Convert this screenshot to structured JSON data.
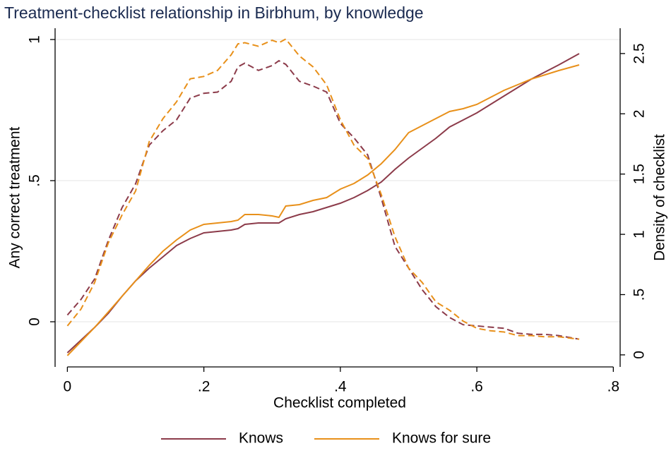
{
  "chart_data": {
    "type": "line",
    "title": "Treatment-checklist relationship in Birbhum, by knowledge",
    "x_label": "Checklist completed",
    "y_label": "Any correct treatment",
    "y2_label": "Density of checklist",
    "x": [
      0,
      0.02,
      0.04,
      0.06,
      0.08,
      0.1,
      0.12,
      0.14,
      0.16,
      0.18,
      0.2,
      0.22,
      0.24,
      0.25,
      0.26,
      0.28,
      0.3,
      0.31,
      0.32,
      0.34,
      0.36,
      0.38,
      0.4,
      0.42,
      0.44,
      0.46,
      0.48,
      0.5,
      0.52,
      0.54,
      0.56,
      0.58,
      0.6,
      0.62,
      0.64,
      0.66,
      0.68,
      0.7,
      0.72,
      0.75
    ],
    "series": [
      {
        "name": "Knows",
        "color": "#8c3b4a",
        "values": [
          -0.11,
          -0.065,
          -0.02,
          0.03,
          0.09,
          0.145,
          0.19,
          0.23,
          0.27,
          0.295,
          0.315,
          0.32,
          0.325,
          0.33,
          0.345,
          0.35,
          0.35,
          0.35,
          0.365,
          0.38,
          0.39,
          0.405,
          0.42,
          0.44,
          0.465,
          0.495,
          0.54,
          0.58,
          0.615,
          0.65,
          0.69,
          0.715,
          0.74,
          0.77,
          0.8,
          0.83,
          0.86,
          0.885,
          0.91,
          0.95
        ],
        "density": [
          0.33,
          0.46,
          0.63,
          0.95,
          1.22,
          1.42,
          1.74,
          1.86,
          1.95,
          2.13,
          2.17,
          2.18,
          2.27,
          2.39,
          2.42,
          2.36,
          2.4,
          2.44,
          2.41,
          2.27,
          2.23,
          2.18,
          1.92,
          1.8,
          1.66,
          1.3,
          0.9,
          0.72,
          0.54,
          0.4,
          0.31,
          0.25,
          0.24,
          0.23,
          0.22,
          0.18,
          0.17,
          0.17,
          0.16,
          0.13
        ]
      },
      {
        "name": "Knows for sure",
        "color": "#e8901a",
        "values": [
          -0.12,
          -0.07,
          -0.02,
          0.035,
          0.09,
          0.145,
          0.2,
          0.25,
          0.29,
          0.325,
          0.345,
          0.35,
          0.355,
          0.36,
          0.38,
          0.38,
          0.375,
          0.37,
          0.41,
          0.415,
          0.43,
          0.44,
          0.47,
          0.49,
          0.52,
          0.56,
          0.61,
          0.67,
          0.695,
          0.72,
          0.745,
          0.755,
          0.77,
          0.795,
          0.82,
          0.84,
          0.86,
          0.875,
          0.89,
          0.91
        ],
        "density": [
          0.24,
          0.38,
          0.6,
          0.93,
          1.16,
          1.36,
          1.77,
          1.96,
          2.1,
          2.29,
          2.31,
          2.36,
          2.49,
          2.58,
          2.59,
          2.56,
          2.61,
          2.59,
          2.62,
          2.48,
          2.39,
          2.24,
          1.95,
          1.74,
          1.63,
          1.33,
          0.98,
          0.72,
          0.6,
          0.44,
          0.37,
          0.28,
          0.22,
          0.2,
          0.19,
          0.16,
          0.16,
          0.15,
          0.15,
          0.13
        ]
      }
    ],
    "xlim": [
      -0.018,
      0.81
    ],
    "ylim": [
      -0.16,
      1.04
    ],
    "y2lim": [
      -0.1,
      2.71
    ],
    "xticks": [
      0,
      {
        "value": 0.2,
        "label": ".2"
      },
      {
        "value": 0.4,
        "label": ".4"
      },
      {
        "value": 0.6,
        "label": ".6"
      },
      {
        "value": 0.8,
        "label": ".8"
      }
    ],
    "yticks": [
      0,
      {
        "value": 0.5,
        "label": ".5"
      },
      1
    ],
    "y2ticks": [
      0,
      {
        "value": 0.5,
        "label": ".5"
      },
      1,
      {
        "value": 1.5,
        "label": "1.5"
      },
      2,
      {
        "value": 2.5,
        "label": "2.5"
      }
    ],
    "grid": true,
    "legend": "bottom"
  }
}
